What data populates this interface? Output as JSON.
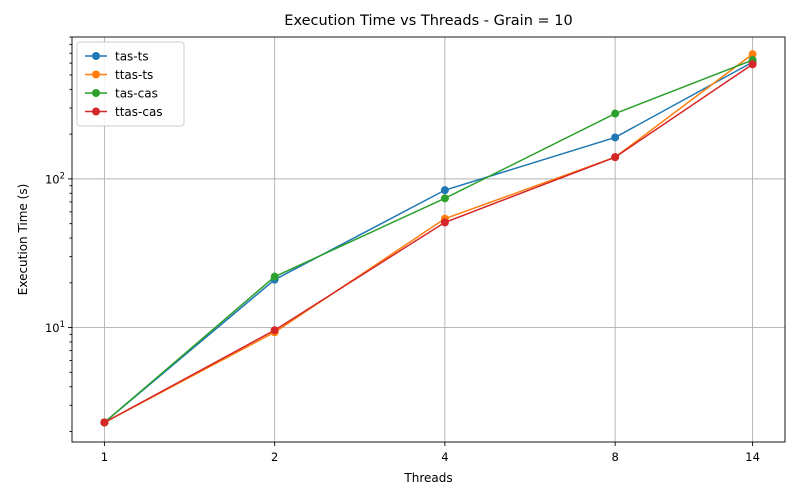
{
  "chart_data": {
    "type": "line",
    "title": "Execution Time vs Threads - Grain = 10",
    "xlabel": "Threads",
    "ylabel": "Execution Time (s)",
    "x": [
      1,
      2,
      4,
      8,
      14
    ],
    "x_tick_labels": [
      "1",
      "2",
      "4",
      "8",
      "14"
    ],
    "y_scale": "log",
    "ylim": [
      1.7,
      900
    ],
    "y_ticks": [
      {
        "value": 10,
        "base": "10",
        "exp": "1"
      },
      {
        "value": 100,
        "base": "10",
        "exp": "2"
      }
    ],
    "grid": true,
    "legend_position": "top-left",
    "series": [
      {
        "name": "tas-ts",
        "color": "#1f77b4",
        "values": [
          2.3,
          21,
          84,
          190,
          610
        ]
      },
      {
        "name": "ttas-ts",
        "color": "#ff7f0e",
        "values": [
          2.3,
          9.3,
          54,
          140,
          690
        ]
      },
      {
        "name": "tas-cas",
        "color": "#2ca02c",
        "values": [
          2.3,
          22,
          74,
          275,
          630
        ]
      },
      {
        "name": "ttas-cas",
        "color": "#d62728",
        "values": [
          2.3,
          9.6,
          51,
          140,
          590
        ]
      }
    ]
  }
}
